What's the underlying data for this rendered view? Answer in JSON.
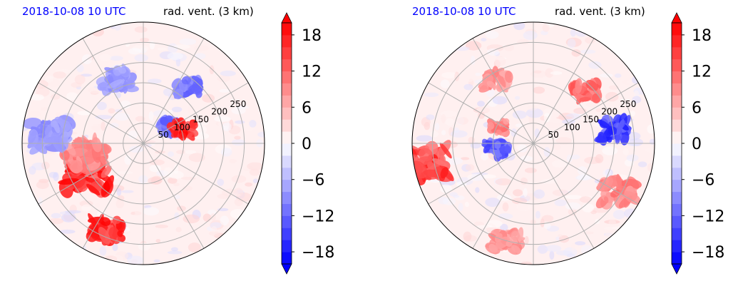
{
  "chart_data": [
    {
      "type": "heatmap",
      "projection": "polar",
      "title_left": "2018-10-08 10 UTC",
      "title_right": "rad. vent. (3 km)",
      "radial_ticks": [
        50,
        100,
        150,
        200,
        250
      ],
      "r_max": 300,
      "angular_gridline_step_deg": 30,
      "grid": true,
      "colorbar": {
        "ticks": [
          18,
          12,
          6,
          0,
          -6,
          -12,
          -18
        ],
        "tick_labels": [
          "18",
          "12",
          "6",
          "0",
          "−6",
          "−12",
          "−18"
        ],
        "range": [
          -20,
          20
        ],
        "level_step": 2,
        "extend": "both",
        "colormap": "bwr"
      },
      "features": [
        {
          "r": 160,
          "theta": 210,
          "value": 20,
          "extent": 1
        },
        {
          "r": 230,
          "theta": 248,
          "value": 20,
          "extent": 0.8
        },
        {
          "r": 75,
          "theta": 33,
          "value": -14,
          "extent": 0.5
        },
        {
          "r": 105,
          "theta": 19,
          "value": 20,
          "extent": 0.5
        },
        {
          "r": 180,
          "theta": 52,
          "value": -14,
          "extent": 0.6
        },
        {
          "r": 150,
          "theta": 190,
          "value": 12,
          "extent": 1
        },
        {
          "r": 230,
          "theta": 175,
          "value": -10,
          "extent": 0.9
        },
        {
          "r": 170,
          "theta": 112,
          "value": -10,
          "extent": 0.7
        }
      ]
    },
    {
      "type": "heatmap",
      "projection": "polar",
      "title_left": "2018-10-08 10 UTC",
      "title_right": "rad. vent. (3 km)",
      "radial_ticks": [
        50,
        100,
        150,
        200,
        250
      ],
      "r_max": 300,
      "angular_gridline_step_deg": 30,
      "grid": true,
      "colorbar": {
        "ticks": [
          18,
          12,
          6,
          0,
          -6,
          -12,
          -18
        ],
        "tick_labels": [
          "18",
          "12",
          "6",
          "0",
          "−6",
          "−12",
          "−18"
        ],
        "range": [
          -20,
          20
        ],
        "level_step": 2,
        "extend": "both",
        "colormap": "bwr"
      },
      "features": [
        {
          "r": 270,
          "theta": 190,
          "value": 18,
          "extent": 1
        },
        {
          "r": 90,
          "theta": 190,
          "value": -16,
          "extent": 0.5
        },
        {
          "r": 95,
          "theta": 155,
          "value": 12,
          "extent": 0.4
        },
        {
          "r": 180,
          "theta": 45,
          "value": 14,
          "extent": 0.6
        },
        {
          "r": 200,
          "theta": 10,
          "value": -18,
          "extent": 0.7
        },
        {
          "r": 240,
          "theta": -30,
          "value": 12,
          "extent": 0.8
        },
        {
          "r": 250,
          "theta": 255,
          "value": 10,
          "extent": 0.7
        },
        {
          "r": 180,
          "theta": 120,
          "value": 10,
          "extent": 0.6
        }
      ]
    }
  ]
}
